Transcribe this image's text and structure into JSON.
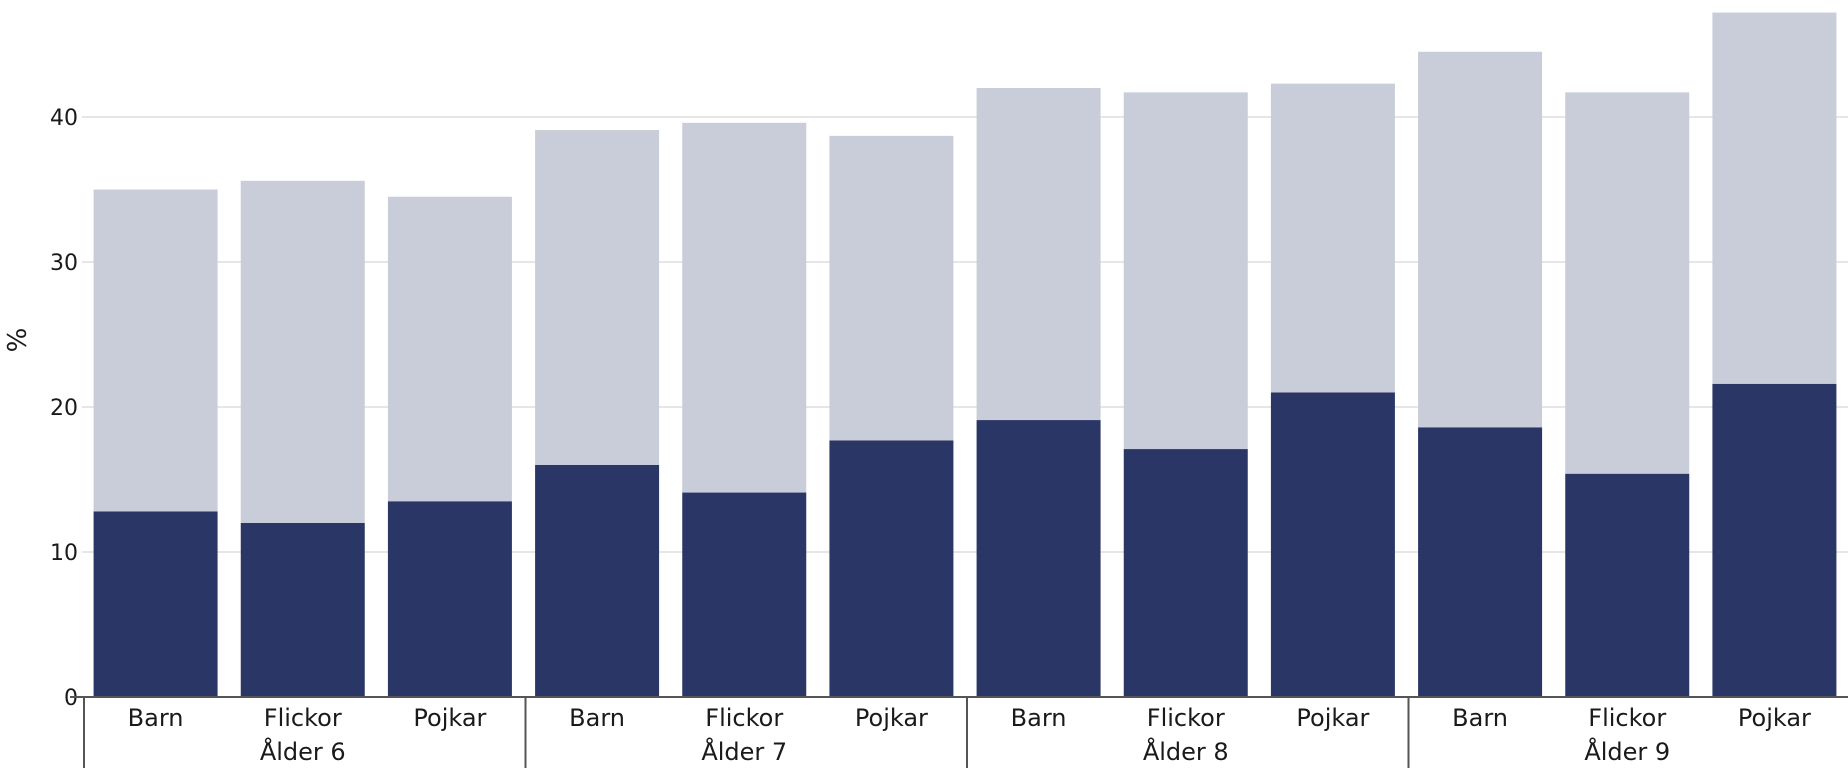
{
  "chart_data": {
    "type": "bar",
    "stacked": true,
    "title": "",
    "xlabel": "",
    "ylabel": "%",
    "ylim": [
      0,
      47.2
    ],
    "yticks": [
      0,
      10,
      20,
      30,
      40
    ],
    "grid": true,
    "legend": "none",
    "colors": {
      "bottom": "#2a3665",
      "top": "#c9ccd9",
      "grid": "#e6e6e6",
      "axis": "#555555"
    },
    "groups": [
      {
        "label": "Ålder 6",
        "categories": [
          "Barn",
          "Flickor",
          "Pojkar"
        ]
      },
      {
        "label": "Ålder 7",
        "categories": [
          "Barn",
          "Flickor",
          "Pojkar"
        ]
      },
      {
        "label": "Ålder 8",
        "categories": [
          "Barn",
          "Flickor",
          "Pojkar"
        ]
      },
      {
        "label": "Ålder 9",
        "categories": [
          "Barn",
          "Flickor",
          "Pojkar"
        ]
      }
    ],
    "series": [
      {
        "values": [
          12.8,
          12.0,
          13.5,
          16.0,
          14.1,
          17.7,
          19.1,
          17.1,
          21.0,
          18.6,
          15.4,
          21.6
        ]
      },
      {
        "values": [
          22.2,
          23.6,
          21.0,
          23.1,
          25.5,
          21.0,
          22.9,
          24.6,
          21.3,
          25.9,
          26.3,
          25.6
        ]
      }
    ]
  }
}
